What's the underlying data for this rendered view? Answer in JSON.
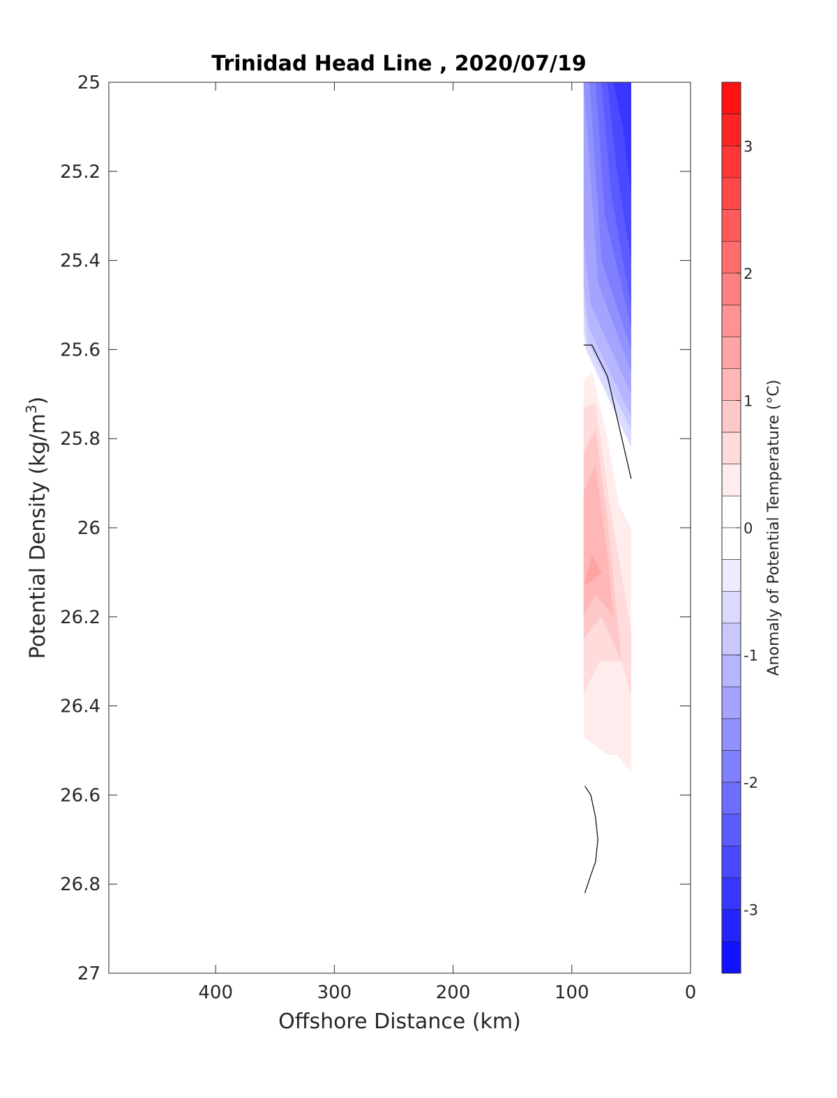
{
  "chart_data": {
    "type": "heatmap",
    "title": "Trinidad Head Line , 2020/07/19",
    "xlabel": "Offshore Distance (km)",
    "ylabel_main": "Potential Density (kg/m",
    "ylabel_sup": "3",
    "ylabel_close": ")",
    "xlim": [
      490,
      0
    ],
    "ylim": [
      25,
      27
    ],
    "x_ticks": [
      400,
      300,
      200,
      100,
      0
    ],
    "x_tick_labels": [
      "400",
      "300",
      "200",
      "100",
      "0"
    ],
    "y_ticks": [
      25,
      25.2,
      25.4,
      25.6,
      25.8,
      26,
      26.2,
      26.4,
      26.6,
      26.8,
      27
    ],
    "y_tick_labels": [
      "25",
      "25.2",
      "25.4",
      "25.6",
      "25.8",
      "26",
      "26.2",
      "26.4",
      "26.6",
      "26.8",
      "27"
    ],
    "colorbar": {
      "label": "Anomaly of Potential Temperature (°C)",
      "clim": [
        -3.5,
        3.5
      ],
      "level_step": 0.25,
      "ticks": [
        3,
        2,
        1,
        0,
        -1,
        -2,
        -3
      ],
      "tick_labels": [
        "3",
        "2",
        "1",
        "0",
        "-1",
        "-2",
        "-3"
      ],
      "max_color": "#ff0000",
      "min_color": "#0000ff",
      "neutral_color": "#ffffff"
    },
    "contour_regions": [
      {
        "level": -2.75,
        "points": [
          [
            65,
            25
          ],
          [
            50,
            25
          ],
          [
            50,
            25.25
          ],
          [
            57,
            25.1
          ]
        ]
      },
      {
        "level": -2.5,
        "points": [
          [
            70,
            25
          ],
          [
            50,
            25
          ],
          [
            50,
            25.4
          ],
          [
            62,
            25.2
          ]
        ]
      },
      {
        "level": -2.25,
        "points": [
          [
            75,
            25
          ],
          [
            50,
            25
          ],
          [
            50,
            25.5
          ],
          [
            67,
            25.25
          ]
        ]
      },
      {
        "level": -2.0,
        "points": [
          [
            80,
            25
          ],
          [
            50,
            25
          ],
          [
            50,
            25.55
          ],
          [
            72,
            25.3
          ]
        ]
      },
      {
        "level": -1.75,
        "points": [
          [
            85,
            25
          ],
          [
            50,
            25
          ],
          [
            50,
            25.6
          ],
          [
            75,
            25.4
          ]
        ]
      },
      {
        "level": -1.5,
        "points": [
          [
            90,
            25
          ],
          [
            50,
            25
          ],
          [
            50,
            25.65
          ],
          [
            78,
            25.45
          ]
        ]
      },
      {
        "level": -1.25,
        "points": [
          [
            90,
            25
          ],
          [
            50,
            25
          ],
          [
            50,
            25.7
          ],
          [
            84,
            25.5
          ],
          [
            90,
            25.35
          ]
        ]
      },
      {
        "level": -1.0,
        "points": [
          [
            90,
            25
          ],
          [
            50,
            25
          ],
          [
            50,
            25.75
          ],
          [
            86,
            25.55
          ],
          [
            90,
            25.45
          ]
        ]
      },
      {
        "level": -0.75,
        "points": [
          [
            90,
            25
          ],
          [
            50,
            25
          ],
          [
            50,
            25.78
          ],
          [
            87,
            25.58
          ],
          [
            90,
            25.5
          ]
        ]
      },
      {
        "level": -0.5,
        "points": [
          [
            90,
            25
          ],
          [
            50,
            25
          ],
          [
            50,
            25.82
          ],
          [
            88,
            25.6
          ],
          [
            90,
            25.56
          ]
        ]
      },
      {
        "level": 0.25,
        "points": [
          [
            90,
            25.67
          ],
          [
            83,
            25.65
          ],
          [
            70,
            25.8
          ],
          [
            60,
            25.95
          ],
          [
            50,
            26
          ],
          [
            50,
            26.55
          ],
          [
            62,
            26.51
          ],
          [
            70,
            26.51
          ],
          [
            90,
            26.47
          ]
        ]
      },
      {
        "level": 0.5,
        "points": [
          [
            90,
            25.73
          ],
          [
            80,
            25.72
          ],
          [
            68,
            25.95
          ],
          [
            50,
            26.23
          ],
          [
            50,
            26.38
          ],
          [
            58,
            26.3
          ],
          [
            76,
            26.3
          ],
          [
            90,
            26.37
          ]
        ]
      },
      {
        "level": 0.75,
        "points": [
          [
            90,
            25.83
          ],
          [
            80,
            25.78
          ],
          [
            70,
            25.98
          ],
          [
            58,
            26.3
          ],
          [
            75,
            26.2
          ],
          [
            90,
            26.25
          ]
        ]
      },
      {
        "level": 1.0,
        "points": [
          [
            90,
            25.92
          ],
          [
            80,
            25.86
          ],
          [
            70,
            26.06
          ],
          [
            65,
            26.2
          ],
          [
            80,
            26.15
          ],
          [
            90,
            26.2
          ]
        ]
      },
      {
        "level": 1.25,
        "points": [
          [
            90,
            26.13
          ],
          [
            83,
            26.06
          ],
          [
            75,
            26.1
          ],
          [
            83,
            26.12
          ],
          [
            90,
            26.13
          ]
        ]
      }
    ],
    "zero_contours": [
      {
        "points": [
          [
            90,
            25.59
          ],
          [
            83,
            25.59
          ],
          [
            70,
            25.66
          ],
          [
            50,
            25.89
          ]
        ]
      },
      {
        "points": [
          [
            89,
            26.58
          ],
          [
            84,
            26.6
          ],
          [
            80,
            26.65
          ],
          [
            78,
            26.7
          ],
          [
            80,
            26.75
          ],
          [
            84,
            26.78
          ],
          [
            89,
            26.82
          ]
        ]
      }
    ]
  }
}
